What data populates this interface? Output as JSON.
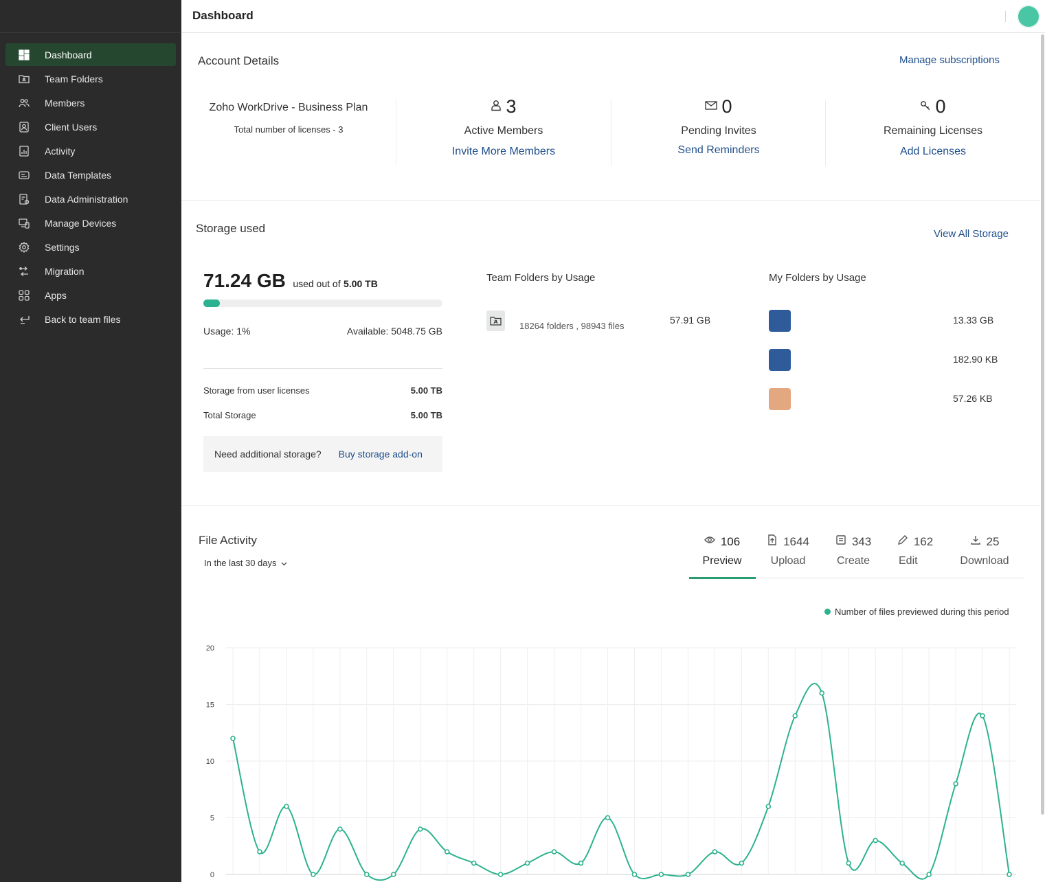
{
  "header": {
    "title": "Dashboard"
  },
  "sidebar": {
    "items": [
      {
        "label": "Dashboard",
        "icon": "grid-icon",
        "active": true
      },
      {
        "label": "Team Folders",
        "icon": "team-folder-icon"
      },
      {
        "label": "Members",
        "icon": "members-icon"
      },
      {
        "label": "Client Users",
        "icon": "client-user-icon"
      },
      {
        "label": "Activity",
        "icon": "activity-icon"
      },
      {
        "label": "Data Templates",
        "icon": "data-template-icon"
      },
      {
        "label": "Data Administration",
        "icon": "data-admin-icon"
      },
      {
        "label": "Manage Devices",
        "icon": "devices-icon"
      },
      {
        "label": "Settings",
        "icon": "gear-icon"
      },
      {
        "label": "Migration",
        "icon": "migration-icon"
      },
      {
        "label": "Apps",
        "icon": "apps-icon"
      },
      {
        "label": "Back to team files",
        "icon": "back-icon"
      }
    ]
  },
  "account": {
    "title": "Account Details",
    "manage_link": "Manage subscriptions",
    "plan_name": "Zoho WorkDrive - Business Plan",
    "licenses_text": "Total number of licenses - 3",
    "active_members": {
      "count": "3",
      "label": "Active Members",
      "link": "Invite More Members"
    },
    "pending_invites": {
      "count": "0",
      "label": "Pending Invites",
      "link": "Send Reminders"
    },
    "remaining_licenses": {
      "count": "0",
      "label": "Remaining Licenses",
      "link": "Add Licenses"
    }
  },
  "storage": {
    "title": "Storage used",
    "view_all": "View All Storage",
    "used": "71.24 GB",
    "used_out_of_prefix": "used out of",
    "total": "5.00 TB",
    "usage_fraction": 0.01,
    "usage_text": "Usage: 1%",
    "available_text": "Available: 5048.75 GB",
    "from_licenses_label": "Storage from user licenses",
    "from_licenses_value": "5.00 TB",
    "total_storage_label": "Total Storage",
    "total_storage_value": "5.00 TB",
    "addon_question": "Need additional storage?",
    "addon_link": "Buy storage add-on",
    "team_folders_title": "Team Folders by Usage",
    "team_folder_row": {
      "summary": "18264 folders , 98943 files",
      "size": "57.91 GB"
    },
    "my_folders_title": "My Folders by Usage",
    "my_folders": [
      {
        "color": "#2f5b9b",
        "size": "13.33 GB"
      },
      {
        "color": "#2f5b9b",
        "size": "182.90 KB"
      },
      {
        "color": "#e3a880",
        "size": "57.26 KB"
      }
    ]
  },
  "activity": {
    "title": "File Activity",
    "period": "In the last 30 days",
    "tabs": [
      {
        "count": "106",
        "label": "Preview",
        "icon": "eye-icon",
        "active": true
      },
      {
        "count": "1644",
        "label": "Upload",
        "icon": "upload-icon"
      },
      {
        "count": "343",
        "label": "Create",
        "icon": "create-icon"
      },
      {
        "count": "162",
        "label": "Edit",
        "icon": "pencil-icon"
      },
      {
        "count": "25",
        "label": "Download",
        "icon": "download-icon"
      }
    ]
  },
  "colors": {
    "accent": "#2cb28e",
    "sidebar_bg": "#2b2b2b",
    "active_nav": "#26472f",
    "link": "#1f4f8b"
  },
  "chart_data": {
    "type": "line",
    "title": "",
    "legend": "Number of files previewed during this period",
    "legend_position": "top-right",
    "ylim": [
      0,
      20
    ],
    "yticks": [
      0,
      5,
      10,
      15,
      20
    ],
    "grid": true,
    "series": [
      {
        "name": "Number of files previewed during this period",
        "values": [
          12,
          2,
          6,
          0,
          4,
          0,
          0,
          4,
          2,
          1,
          0,
          1,
          2,
          1,
          5,
          0,
          0,
          0,
          2,
          1,
          6,
          14,
          16,
          1,
          3,
          1,
          0,
          8,
          14,
          0
        ]
      }
    ]
  }
}
